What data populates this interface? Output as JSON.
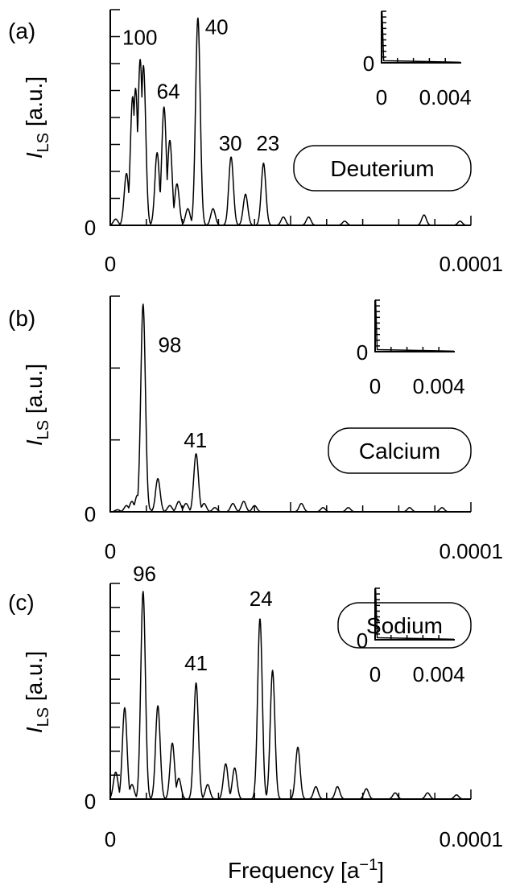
{
  "figure": {
    "xlabel_text": "Frequency [a",
    "xlabel_sup": "−1",
    "xlabel_close": "]"
  },
  "chart_data": [
    {
      "type": "line",
      "panel": "(a)",
      "name": "Deuterium",
      "ylabel_main": "I",
      "ylabel_sub": "LS",
      "ylabel_unit": "[a.u.]",
      "xlim": [
        0,
        0.0001
      ],
      "x_tick_labels": [
        "0",
        "0.0001"
      ],
      "y_tick_labels": [
        "0"
      ],
      "ylim": [
        0,
        1.0
      ],
      "y_minor_ticks": 8,
      "peaks": [
        {
          "x": 1.5e-06,
          "y": 0.03
        },
        {
          "x": 4.5e-06,
          "y": 0.25
        },
        {
          "x": 6.2e-06,
          "y": 0.62
        },
        {
          "x": 7e-06,
          "y": 0.66
        },
        {
          "x": 8.3e-06,
          "y": 0.8
        },
        {
          "x": 9.2e-06,
          "y": 0.77
        },
        {
          "x": 1.3e-05,
          "y": 0.35
        },
        {
          "x": 1.49e-05,
          "y": 0.57
        },
        {
          "x": 1.65e-05,
          "y": 0.41
        },
        {
          "x": 1.85e-05,
          "y": 0.2
        },
        {
          "x": 2.15e-05,
          "y": 0.08
        },
        {
          "x": 2.43e-05,
          "y": 1.0
        },
        {
          "x": 2.85e-05,
          "y": 0.08
        },
        {
          "x": 3.35e-05,
          "y": 0.33
        },
        {
          "x": 3.75e-05,
          "y": 0.15
        },
        {
          "x": 4.25e-05,
          "y": 0.3
        },
        {
          "x": 4.8e-05,
          "y": 0.04
        },
        {
          "x": 5.5e-05,
          "y": 0.04
        },
        {
          "x": 6.5e-05,
          "y": 0.02
        },
        {
          "x": 8.7e-05,
          "y": 0.05
        },
        {
          "x": 9.7e-05,
          "y": 0.02
        }
      ],
      "annotations": [
        {
          "text": "100",
          "x": 8.2e-06,
          "y": 0.87
        },
        {
          "text": "64",
          "x": 1.61e-05,
          "y": 0.61
        },
        {
          "text": "40",
          "x": 2.95e-05,
          "y": 0.92
        },
        {
          "text": "30",
          "x": 3.33e-05,
          "y": 0.36
        },
        {
          "text": "23",
          "x": 4.37e-05,
          "y": 0.36
        }
      ],
      "inset": {
        "x_tick_labels": [
          "0",
          "0.004"
        ],
        "y_tick_labels": [
          "0"
        ],
        "xlim": [
          0,
          0.005
        ],
        "ylim": [
          0,
          1
        ],
        "peaks": [
          {
            "x": 3e-05,
            "y": 1.0
          }
        ],
        "ticks_x": 4,
        "minor_y": 9
      }
    },
    {
      "type": "line",
      "panel": "(b)",
      "name": "Calcium",
      "ylabel_main": "I",
      "ylabel_sub": "LS",
      "ylabel_unit": "[a.u.]",
      "xlim": [
        0,
        0.0001
      ],
      "x_tick_labels": [
        "0",
        "0.0001"
      ],
      "y_tick_labels": [
        "0"
      ],
      "ylim": [
        0,
        1.0
      ],
      "y_minor_ticks": 3,
      "peaks": [
        {
          "x": 2e-06,
          "y": 0.01
        },
        {
          "x": 4.5e-06,
          "y": 0.03
        },
        {
          "x": 6e-06,
          "y": 0.05
        },
        {
          "x": 7.5e-06,
          "y": 0.08
        },
        {
          "x": 9.1e-06,
          "y": 1.0
        },
        {
          "x": 1.05e-05,
          "y": 0.02
        },
        {
          "x": 1.32e-05,
          "y": 0.16
        },
        {
          "x": 1.65e-05,
          "y": 0.03
        },
        {
          "x": 1.9e-05,
          "y": 0.05
        },
        {
          "x": 2.1e-05,
          "y": 0.04
        },
        {
          "x": 2.38e-05,
          "y": 0.28
        },
        {
          "x": 2.6e-05,
          "y": 0.04
        },
        {
          "x": 2.9e-05,
          "y": 0.02
        },
        {
          "x": 3.4e-05,
          "y": 0.04
        },
        {
          "x": 3.7e-05,
          "y": 0.05
        },
        {
          "x": 4e-05,
          "y": 0.03
        },
        {
          "x": 5.3e-05,
          "y": 0.04
        },
        {
          "x": 5.9e-05,
          "y": 0.02
        },
        {
          "x": 6.6e-05,
          "y": 0.02
        },
        {
          "x": 8.3e-05,
          "y": 0.02
        },
        {
          "x": 9.2e-05,
          "y": 0.02
        }
      ],
      "annotations": [
        {
          "text": "98",
          "x": 1.65e-05,
          "y": 0.77
        },
        {
          "text": "41",
          "x": 2.36e-05,
          "y": 0.31
        }
      ],
      "inset": {
        "x_tick_labels": [
          "0",
          "0.004"
        ],
        "y_tick_labels": [
          "0"
        ],
        "xlim": [
          0,
          0.005
        ],
        "ylim": [
          0,
          1
        ],
        "peaks": [
          {
            "x": 3e-05,
            "y": 1.0
          }
        ],
        "ticks_x": 4,
        "minor_y": 9
      }
    },
    {
      "type": "line",
      "panel": "(c)",
      "name": "Sodium",
      "ylabel_main": "I",
      "ylabel_sub": "LS",
      "ylabel_unit": "[a.u.]",
      "xlim": [
        0,
        0.0001
      ],
      "x_tick_labels": [
        "0",
        "0.0001"
      ],
      "y_tick_labels": [
        "0"
      ],
      "ylim": [
        0,
        1.0
      ],
      "y_minor_ticks": 9,
      "peaks": [
        {
          "x": 1.5e-06,
          "y": 0.13
        },
        {
          "x": 4e-06,
          "y": 0.44
        },
        {
          "x": 6e-06,
          "y": 0.07
        },
        {
          "x": 9.1e-06,
          "y": 1.0
        },
        {
          "x": 1.32e-05,
          "y": 0.45
        },
        {
          "x": 1.72e-05,
          "y": 0.27
        },
        {
          "x": 1.9e-05,
          "y": 0.1
        },
        {
          "x": 2.38e-05,
          "y": 0.56
        },
        {
          "x": 2.7e-05,
          "y": 0.07
        },
        {
          "x": 3.2e-05,
          "y": 0.17
        },
        {
          "x": 3.45e-05,
          "y": 0.15
        },
        {
          "x": 4.15e-05,
          "y": 0.87
        },
        {
          "x": 4.5e-05,
          "y": 0.62
        },
        {
          "x": 5.2e-05,
          "y": 0.25
        },
        {
          "x": 5.7e-05,
          "y": 0.06
        },
        {
          "x": 6.3e-05,
          "y": 0.06
        },
        {
          "x": 7.1e-05,
          "y": 0.05
        },
        {
          "x": 7.9e-05,
          "y": 0.03
        },
        {
          "x": 8.8e-05,
          "y": 0.03
        },
        {
          "x": 9.6e-05,
          "y": 0.02
        }
      ],
      "annotations": [
        {
          "text": "96",
          "x": 9.5e-06,
          "y": 1.05
        },
        {
          "text": "41",
          "x": 2.38e-05,
          "y": 0.62
        },
        {
          "text": "24",
          "x": 4.18e-05,
          "y": 0.93
        }
      ],
      "inset": {
        "x_tick_labels": [
          "0",
          "0.004"
        ],
        "y_tick_labels": [
          "0"
        ],
        "xlim": [
          0,
          0.005
        ],
        "ylim": [
          0,
          1
        ],
        "peaks": [
          {
            "x": 3e-05,
            "y": 1.0
          }
        ],
        "ticks_x": 4,
        "minor_y": 9
      }
    }
  ]
}
